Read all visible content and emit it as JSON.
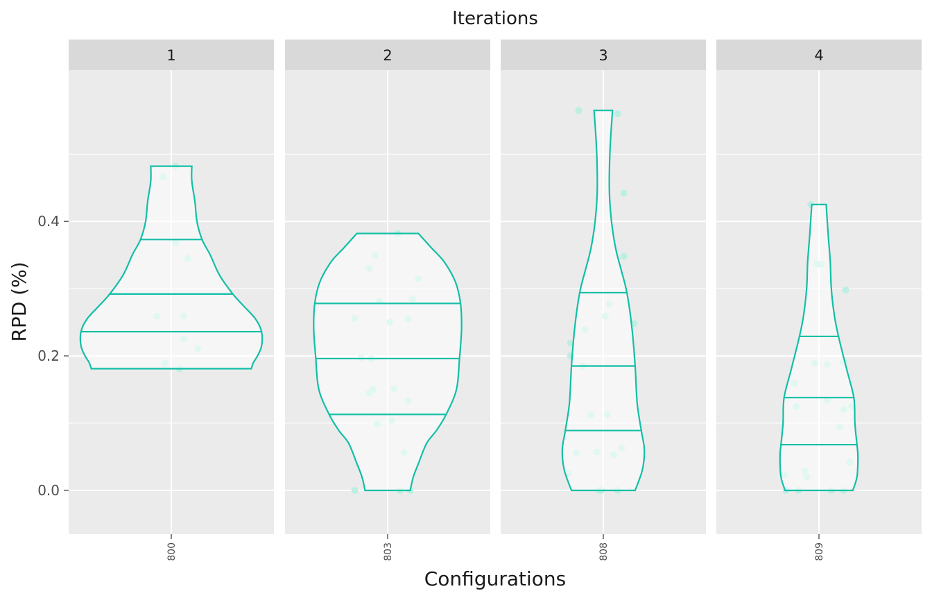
{
  "chart_data": {
    "type": "violin",
    "facet_title": "Iterations",
    "xlabel": "Configurations",
    "ylabel": "RPD (%)",
    "ylim": [
      -0.065,
      0.625
    ],
    "yticks": [
      0.0,
      0.2,
      0.4
    ],
    "ytick_labels": [
      "0.0",
      "0.2",
      "0.4"
    ],
    "grid": true,
    "colors": {
      "violin": "#12bfa6",
      "points": "#bdeee2",
      "panel_bg": "#ebebeb",
      "strip_bg": "#d9d9d9",
      "grid": "#ffffff"
    },
    "panels": [
      {
        "strip": "1",
        "config": "800",
        "quantiles": [
          0.236,
          0.292,
          0.373
        ],
        "range": [
          0.181,
          0.482
        ],
        "profile": [
          [
            0.181,
            0.78
          ],
          [
            0.19,
            0.8
          ],
          [
            0.2,
            0.84
          ],
          [
            0.215,
            0.88
          ],
          [
            0.236,
            0.88
          ],
          [
            0.255,
            0.82
          ],
          [
            0.275,
            0.7
          ],
          [
            0.292,
            0.6
          ],
          [
            0.32,
            0.47
          ],
          [
            0.35,
            0.38
          ],
          [
            0.373,
            0.3
          ],
          [
            0.4,
            0.25
          ],
          [
            0.43,
            0.23
          ],
          [
            0.46,
            0.2
          ],
          [
            0.482,
            0.2
          ]
        ],
        "points": [
          [
            -0.04,
            0.466
          ],
          [
            0.02,
            0.482
          ],
          [
            0.02,
            0.368
          ],
          [
            0.08,
            0.345
          ],
          [
            -0.07,
            0.259
          ],
          [
            0.06,
            0.259
          ],
          [
            0.06,
            0.225
          ],
          [
            0.13,
            0.211
          ],
          [
            -0.03,
            0.189
          ],
          [
            0.04,
            0.181
          ]
        ]
      },
      {
        "strip": "2",
        "config": "803",
        "quantiles": [
          0.113,
          0.196,
          0.278
        ],
        "range": [
          0.0,
          0.382
        ],
        "profile": [
          [
            0.0,
            0.22
          ],
          [
            0.02,
            0.25
          ],
          [
            0.04,
            0.3
          ],
          [
            0.07,
            0.38
          ],
          [
            0.09,
            0.48
          ],
          [
            0.113,
            0.57
          ],
          [
            0.15,
            0.67
          ],
          [
            0.196,
            0.7
          ],
          [
            0.24,
            0.72
          ],
          [
            0.278,
            0.71
          ],
          [
            0.31,
            0.66
          ],
          [
            0.34,
            0.55
          ],
          [
            0.36,
            0.43
          ],
          [
            0.382,
            0.3
          ]
        ],
        "points": [
          [
            0.05,
            0.382
          ],
          [
            -0.06,
            0.349
          ],
          [
            -0.09,
            0.33
          ],
          [
            0.15,
            0.315
          ],
          [
            0.12,
            0.285
          ],
          [
            -0.04,
            0.281
          ],
          [
            -0.16,
            0.256
          ],
          [
            0.1,
            0.255
          ],
          [
            0.01,
            0.25
          ],
          [
            -0.13,
            0.197
          ],
          [
            -0.08,
            0.196
          ],
          [
            0.03,
            0.151
          ],
          [
            -0.07,
            0.15
          ],
          [
            -0.09,
            0.145
          ],
          [
            0.1,
            0.133
          ],
          [
            0.02,
            0.104
          ],
          [
            -0.05,
            0.099
          ],
          [
            0.08,
            0.056
          ],
          [
            -0.16,
            0.0
          ],
          [
            0.06,
            0.0
          ],
          [
            0.11,
            0.0
          ]
        ]
      },
      {
        "strip": "3",
        "config": "808",
        "quantiles": [
          0.089,
          0.185,
          0.294
        ],
        "range": [
          0.0,
          0.565
        ],
        "profile": [
          [
            0.0,
            0.31
          ],
          [
            0.03,
            0.38
          ],
          [
            0.06,
            0.4
          ],
          [
            0.089,
            0.37
          ],
          [
            0.13,
            0.33
          ],
          [
            0.185,
            0.31
          ],
          [
            0.24,
            0.28
          ],
          [
            0.294,
            0.23
          ],
          [
            0.33,
            0.17
          ],
          [
            0.36,
            0.12
          ],
          [
            0.4,
            0.08
          ],
          [
            0.44,
            0.06
          ],
          [
            0.48,
            0.06
          ],
          [
            0.52,
            0.07
          ],
          [
            0.565,
            0.09
          ]
        ],
        "points": [
          [
            -0.12,
            0.565
          ],
          [
            0.07,
            0.56
          ],
          [
            0.1,
            0.442
          ],
          [
            0.1,
            0.348
          ],
          [
            0.03,
            0.277
          ],
          [
            0.01,
            0.259
          ],
          [
            0.15,
            0.248
          ],
          [
            -0.09,
            0.239
          ],
          [
            -0.16,
            0.219
          ],
          [
            -0.16,
            0.2
          ],
          [
            -0.1,
            0.185
          ],
          [
            0.02,
            0.113
          ],
          [
            -0.06,
            0.112
          ],
          [
            0.09,
            0.063
          ],
          [
            -0.13,
            0.056
          ],
          [
            -0.03,
            0.057
          ],
          [
            0.05,
            0.053
          ],
          [
            -0.17,
            0.025
          ],
          [
            -0.02,
            0.0
          ],
          [
            -0.01,
            0.0
          ],
          [
            0.07,
            0.0
          ]
        ]
      },
      {
        "strip": "4",
        "config": "809",
        "quantiles": [
          0.068,
          0.138,
          0.229
        ],
        "range": [
          0.0,
          0.425
        ],
        "profile": [
          [
            0.0,
            0.33
          ],
          [
            0.02,
            0.37
          ],
          [
            0.05,
            0.38
          ],
          [
            0.068,
            0.37
          ],
          [
            0.1,
            0.35
          ],
          [
            0.138,
            0.34
          ],
          [
            0.18,
            0.27
          ],
          [
            0.229,
            0.19
          ],
          [
            0.26,
            0.15
          ],
          [
            0.3,
            0.12
          ],
          [
            0.34,
            0.11
          ],
          [
            0.38,
            0.09
          ],
          [
            0.425,
            0.07
          ]
        ],
        "points": [
          [
            -0.04,
            0.425
          ],
          [
            -0.01,
            0.337
          ],
          [
            0.01,
            0.336
          ],
          [
            0.13,
            0.298
          ],
          [
            -0.12,
            0.159
          ],
          [
            -0.02,
            0.189
          ],
          [
            0.04,
            0.187
          ],
          [
            0.12,
            0.191
          ],
          [
            0.04,
            0.134
          ],
          [
            0.1,
            0.094
          ],
          [
            0.12,
            0.12
          ],
          [
            0.16,
            0.125
          ],
          [
            -0.11,
            0.125
          ],
          [
            0.15,
            0.042
          ],
          [
            -0.07,
            0.029
          ],
          [
            -0.17,
            0.023
          ],
          [
            -0.06,
            0.02
          ],
          [
            -0.16,
            0.0
          ],
          [
            -0.1,
            0.0
          ],
          [
            0.06,
            0.0
          ],
          [
            0.12,
            0.0
          ]
        ]
      }
    ]
  }
}
